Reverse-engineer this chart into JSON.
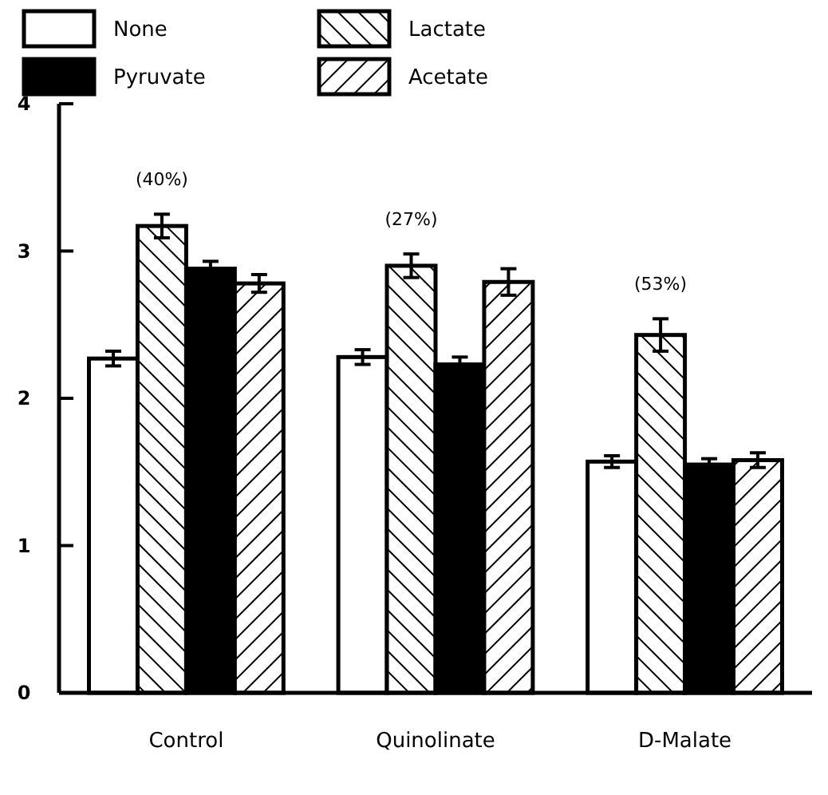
{
  "chart_data": {
    "type": "bar",
    "categories": [
      "Control",
      "Quinolinate",
      "D-Malate"
    ],
    "series": [
      {
        "name": "None",
        "color": "#ffffff",
        "values": [
          2.27,
          2.28,
          1.57
        ],
        "errors": [
          0.05,
          0.05,
          0.04
        ]
      },
      {
        "name": "Lactate",
        "color": "#000000",
        "values": [
          3.17,
          2.9,
          2.43
        ],
        "errors": [
          0.08,
          0.08,
          0.11
        ]
      },
      {
        "name": "Pyruvate",
        "color": "#000000",
        "values": [
          2.88,
          2.23,
          1.55
        ],
        "errors": [
          0.05,
          0.05,
          0.04
        ]
      },
      {
        "name": "Acetate",
        "color": "#000000",
        "values": [
          2.78,
          2.79,
          1.58
        ],
        "errors": [
          0.06,
          0.09,
          0.05
        ]
      }
    ],
    "ylim": [
      0,
      4
    ],
    "yticks": [
      0,
      1,
      2,
      3,
      4
    ],
    "grid": false,
    "legend": "top",
    "annotations": [
      "(40%)",
      "(27%)",
      "(53%)"
    ]
  }
}
